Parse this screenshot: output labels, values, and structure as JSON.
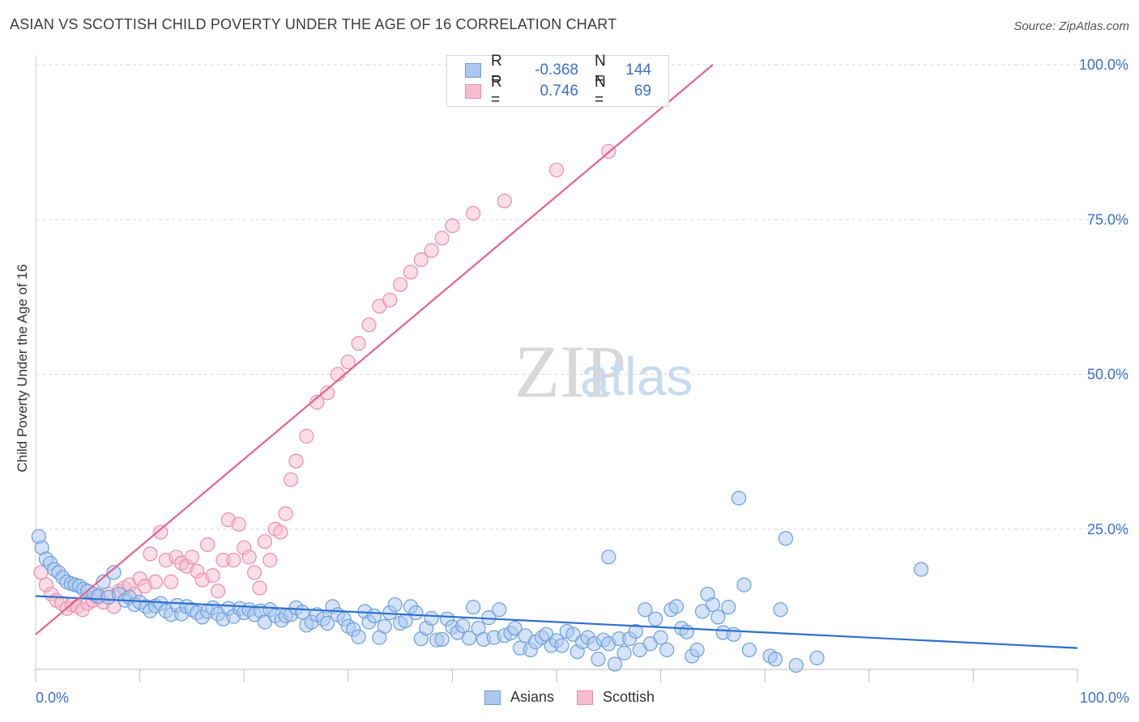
{
  "title": "ASIAN VS SCOTTISH CHILD POVERTY UNDER THE AGE OF 16 CORRELATION CHART",
  "source": "Source: ZipAtlas.com",
  "watermark": {
    "zip": "ZIP",
    "atlas": "atlas"
  },
  "legend": {
    "rows": [
      {
        "r_label": "R =",
        "r_value": "-0.368",
        "n_label": "N =",
        "n_value": "144"
      },
      {
        "r_label": "R =",
        "r_value": "0.746",
        "n_label": "N =",
        "n_value": "69"
      }
    ]
  },
  "bottom_legend": [
    "Asians",
    "Scottish"
  ],
  "colors": {
    "asians_fill": "#aac8f0",
    "asians_stroke": "#6d9ee0",
    "asians_line": "#2f6fcf",
    "scottish_fill": "#f6bccd",
    "scottish_stroke": "#ec8eaa",
    "scottish_line": "#e3648c",
    "tick_label": "#3b6fd4",
    "grid": "#d9d9d9"
  },
  "chart_data": {
    "type": "scatter",
    "title": "ASIAN VS SCOTTISH CHILD POVERTY UNDER THE AGE OF 16 CORRELATION CHART",
    "xlabel": "",
    "ylabel": "Child Poverty Under the Age of 16",
    "xlim": [
      0,
      100
    ],
    "ylim": [
      0,
      102
    ],
    "x_tick_labels": [
      "0.0%",
      "100.0%"
    ],
    "y_ticks": [
      25,
      50,
      75,
      100
    ],
    "y_tick_labels": [
      "25.0%",
      "50.0%",
      "75.0%",
      "100.0%"
    ],
    "grid": true,
    "legend_placement": "top-center",
    "series": [
      {
        "name": "Asians",
        "r": -0.368,
        "n": 144,
        "trend": {
          "x": [
            0,
            100
          ],
          "y": [
            14.2,
            5.8
          ]
        },
        "points": [
          [
            0.3,
            23.8
          ],
          [
            0.6,
            22
          ],
          [
            1,
            20.2
          ],
          [
            1.4,
            19.5
          ],
          [
            1.8,
            18.5
          ],
          [
            2.2,
            18
          ],
          [
            2.6,
            17.2
          ],
          [
            3,
            16.5
          ],
          [
            3.4,
            16.2
          ],
          [
            3.8,
            16
          ],
          [
            4.2,
            15.8
          ],
          [
            4.6,
            15.3
          ],
          [
            5,
            15
          ],
          [
            5.6,
            14.5
          ],
          [
            6,
            14.2
          ],
          [
            6.5,
            16.5
          ],
          [
            7,
            14
          ],
          [
            7.5,
            18
          ],
          [
            8,
            14.5
          ],
          [
            8.6,
            13.5
          ],
          [
            9,
            14
          ],
          [
            9.5,
            12.8
          ],
          [
            10,
            13.2
          ],
          [
            10.6,
            12.5
          ],
          [
            11,
            11.8
          ],
          [
            11.5,
            12.6
          ],
          [
            12,
            13
          ],
          [
            12.5,
            11.8
          ],
          [
            13,
            11.2
          ],
          [
            13.6,
            12.7
          ],
          [
            14,
            11.3
          ],
          [
            14.5,
            12.5
          ],
          [
            15,
            12
          ],
          [
            15.5,
            11.5
          ],
          [
            16,
            10.8
          ],
          [
            16.5,
            11.7
          ],
          [
            17,
            12.3
          ],
          [
            17.5,
            11.3
          ],
          [
            18,
            10.5
          ],
          [
            18.5,
            12.2
          ],
          [
            19,
            10.9
          ],
          [
            19.6,
            12.2
          ],
          [
            20,
            11.5
          ],
          [
            20.5,
            12
          ],
          [
            21,
            11.2
          ],
          [
            21.6,
            11.8
          ],
          [
            22,
            10
          ],
          [
            22.5,
            12
          ],
          [
            23,
            11
          ],
          [
            23.6,
            10.3
          ],
          [
            24,
            11
          ],
          [
            24.5,
            11.2
          ],
          [
            25,
            12.3
          ],
          [
            25.6,
            11.6
          ],
          [
            26,
            9.5
          ],
          [
            26.5,
            10
          ],
          [
            27,
            11.2
          ],
          [
            27.6,
            10.5
          ],
          [
            28,
            9.8
          ],
          [
            28.5,
            12.5
          ],
          [
            29,
            11.2
          ],
          [
            29.6,
            10.5
          ],
          [
            30,
            9.3
          ],
          [
            30.5,
            8.8
          ],
          [
            31,
            7.6
          ],
          [
            31.6,
            11.7
          ],
          [
            32,
            10
          ],
          [
            32.5,
            11
          ],
          [
            33,
            7.5
          ],
          [
            33.5,
            9.3
          ],
          [
            34,
            11.5
          ],
          [
            34.5,
            12.8
          ],
          [
            35,
            9.8
          ],
          [
            35.5,
            10.2
          ],
          [
            36,
            12.5
          ],
          [
            36.5,
            11.5
          ],
          [
            37,
            7.3
          ],
          [
            37.5,
            9
          ],
          [
            38,
            10.6
          ],
          [
            38.5,
            7.1
          ],
          [
            39,
            7.2
          ],
          [
            39.5,
            10.5
          ],
          [
            40,
            9.2
          ],
          [
            40.5,
            8.3
          ],
          [
            41,
            9.4
          ],
          [
            41.6,
            7.4
          ],
          [
            42,
            12.4
          ],
          [
            42.5,
            9
          ],
          [
            43,
            7.2
          ],
          [
            43.5,
            10.7
          ],
          [
            44,
            7.5
          ],
          [
            44.5,
            12
          ],
          [
            45,
            7.8
          ],
          [
            45.6,
            8.2
          ],
          [
            46,
            9
          ],
          [
            46.5,
            5.8
          ],
          [
            47,
            7.8
          ],
          [
            47.5,
            5.5
          ],
          [
            48,
            6.8
          ],
          [
            48.6,
            7.5
          ],
          [
            49,
            8
          ],
          [
            49.5,
            6.2
          ],
          [
            50,
            7
          ],
          [
            50.5,
            6.2
          ],
          [
            51,
            8.5
          ],
          [
            51.6,
            8
          ],
          [
            52,
            5.2
          ],
          [
            52.5,
            6.8
          ],
          [
            53,
            7.5
          ],
          [
            53.6,
            6.5
          ],
          [
            54,
            4
          ],
          [
            54.5,
            7.1
          ],
          [
            55,
            6.5
          ],
          [
            55.6,
            3.2
          ],
          [
            56,
            7.3
          ],
          [
            56.5,
            5
          ],
          [
            57,
            7.3
          ],
          [
            57.6,
            8.5
          ],
          [
            58,
            5.5
          ],
          [
            58.5,
            12
          ],
          [
            59,
            6.5
          ],
          [
            59.5,
            10.5
          ],
          [
            60,
            7.5
          ],
          [
            60.6,
            5.5
          ],
          [
            61,
            12
          ],
          [
            61.5,
            12.5
          ],
          [
            62,
            9
          ],
          [
            62.5,
            8.4
          ],
          [
            63,
            4.5
          ],
          [
            63.5,
            5.5
          ],
          [
            64,
            11.7
          ],
          [
            64.5,
            14.5
          ],
          [
            65,
            12.8
          ],
          [
            65.5,
            10.8
          ],
          [
            66,
            8.3
          ],
          [
            66.5,
            12.4
          ],
          [
            67,
            8
          ],
          [
            67.5,
            30
          ],
          [
            68,
            16
          ],
          [
            68.5,
            5.5
          ],
          [
            70.5,
            4.5
          ],
          [
            71,
            4
          ],
          [
            72,
            23.5
          ],
          [
            73,
            3
          ],
          [
            75,
            4.2
          ],
          [
            85,
            18.5
          ],
          [
            71.5,
            12
          ],
          [
            55,
            20.5
          ]
        ]
      },
      {
        "name": "Scottish",
        "r": 0.746,
        "n": 69,
        "trend": {
          "x": [
            0,
            65
          ],
          "y": [
            8,
            100
          ]
        },
        "points": [
          [
            0.5,
            18
          ],
          [
            1,
            16
          ],
          [
            1.5,
            14.5
          ],
          [
            2,
            13.5
          ],
          [
            2.5,
            13
          ],
          [
            3,
            12.2
          ],
          [
            3.5,
            12.8
          ],
          [
            4,
            12.5
          ],
          [
            4.5,
            12
          ],
          [
            5,
            13
          ],
          [
            5.5,
            13.5
          ],
          [
            6,
            14
          ],
          [
            6.5,
            13.2
          ],
          [
            7,
            14.5
          ],
          [
            7.5,
            12.5
          ],
          [
            8,
            15
          ],
          [
            8.5,
            15.5
          ],
          [
            9,
            16
          ],
          [
            9.5,
            14.5
          ],
          [
            10,
            17
          ],
          [
            10.5,
            15.8
          ],
          [
            11,
            21
          ],
          [
            11.5,
            16.5
          ],
          [
            12,
            24.5
          ],
          [
            12.5,
            20
          ],
          [
            13,
            16.5
          ],
          [
            13.5,
            20.5
          ],
          [
            14,
            19.5
          ],
          [
            14.5,
            19
          ],
          [
            15,
            20.5
          ],
          [
            15.5,
            18.2
          ],
          [
            16,
            16.8
          ],
          [
            16.5,
            22.5
          ],
          [
            17,
            17.5
          ],
          [
            17.5,
            15
          ],
          [
            18,
            20
          ],
          [
            18.5,
            26.5
          ],
          [
            19,
            20
          ],
          [
            19.5,
            25.8
          ],
          [
            20,
            22
          ],
          [
            20.5,
            20.5
          ],
          [
            21,
            18
          ],
          [
            21.5,
            15.5
          ],
          [
            22,
            23
          ],
          [
            22.5,
            20
          ],
          [
            23,
            25
          ],
          [
            23.5,
            24.5
          ],
          [
            24,
            27.5
          ],
          [
            24.5,
            33
          ],
          [
            25,
            36
          ],
          [
            26,
            40
          ],
          [
            27,
            45.5
          ],
          [
            28,
            47
          ],
          [
            29,
            50
          ],
          [
            30,
            52
          ],
          [
            31,
            55
          ],
          [
            32,
            58
          ],
          [
            33,
            61
          ],
          [
            34,
            62
          ],
          [
            35,
            64.5
          ],
          [
            36,
            66.5
          ],
          [
            37,
            68.5
          ],
          [
            38,
            70
          ],
          [
            39,
            72
          ],
          [
            40,
            74
          ],
          [
            42,
            76
          ],
          [
            45,
            78
          ],
          [
            50,
            83
          ],
          [
            55,
            86
          ]
        ]
      }
    ]
  }
}
